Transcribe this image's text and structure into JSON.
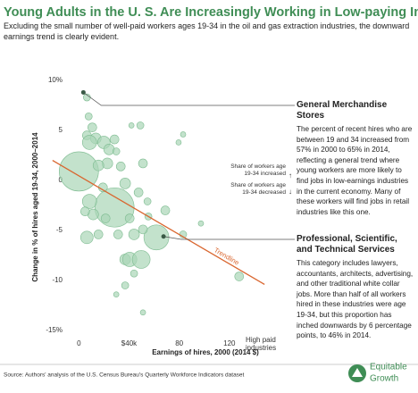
{
  "chart_data": {
    "type": "scatter",
    "title": "Young Adults in the U. S. Are Increasingly Working in Low-paying Industries",
    "subtitle": "Excluding the small number of well-paid workers ages 19-34 in the oil and gas extraction industries, the downward earnings trend is clearly evident.",
    "x_label": "Earnings of hires, 2000 (2014 $)",
    "y_label": "Change in % of hires aged 19-34, 2000–2014",
    "xlim": [
      -23,
      155
    ],
    "ylim": [
      -16,
      10.5
    ],
    "xticks": [
      0,
      {
        "value": 40,
        "label": "$40k"
      },
      80,
      120,
      {
        "value": 145,
        "label": "High paid industries"
      }
    ],
    "yticks": [
      {
        "value": 10,
        "label": "10%"
      },
      5,
      0,
      -5,
      -10,
      {
        "value": -15,
        "label": "-15%"
      }
    ],
    "series": [
      {
        "color": "#a9d6b6",
        "x": [
          6.4,
          7.8,
          6.4,
          10.7,
          13.5,
          8.5,
          0,
          19.9,
          24.1,
          28.4,
          22.7,
          29.8,
          41.9,
          49.0,
          51.1,
          47.6,
          28.4,
          8.5,
          11.4,
          6.4,
          15.6,
          5.0,
          19.2,
          36.9,
          31.3,
          44.0,
          36.9,
          40.5,
          49.7,
          61.8,
          51.1,
          54.7,
          68.9,
          79.5,
          83.1,
          97.3,
          127.8,
          36.9,
          29.8,
          51.1,
          44.0,
          83.1,
          55.4,
          21.3,
          40.5,
          15.6,
          33.4
        ],
        "values": [
          8.3,
          6.4,
          4.5,
          5.3,
          4.2,
          3.8,
          0.9,
          3.8,
          3.1,
          4.1,
          1.7,
          2.9,
          5.5,
          5.5,
          1.7,
          -1.2,
          -2.7,
          -2.1,
          -3.4,
          -5.7,
          -5.4,
          -3.1,
          -0.7,
          -0.3,
          -5.4,
          -5.4,
          -7.9,
          -7.9,
          -7.9,
          -5.7,
          -4.9,
          -2.1,
          -3.0,
          3.8,
          -5.4,
          -4.3,
          -9.6,
          -10.5,
          -11.4,
          -13.2,
          -9.3,
          4.6,
          -3.6,
          -3.8,
          -3.8,
          1.5,
          1.4
        ],
        "sizes": [
          4,
          4,
          5,
          5,
          6,
          8,
          22,
          7,
          6,
          5,
          6,
          4,
          3,
          4,
          5,
          5,
          22,
          8,
          6,
          7,
          5,
          5,
          5,
          6,
          5,
          6,
          6,
          8,
          10,
          14,
          5,
          4,
          5,
          3,
          4,
          3,
          5,
          4,
          3,
          3,
          4,
          3,
          4,
          5,
          5,
          6,
          5
        ]
      }
    ],
    "trendline": {
      "label": "Trendline",
      "color": "#d9662f",
      "x": [
        -21,
        148
      ],
      "y": [
        2.0,
        -10.4
      ]
    },
    "legend": {
      "increased": "Share of workers age 19-34 increased",
      "decreased": "Share of workers age 19-34 decreased"
    },
    "annotations": [
      {
        "title": "General Merchandise Stores",
        "x": 3.6,
        "y": 8.8,
        "text": "The percent of recent hires who are between 19 and 34 increased from 57% in 2000 to 65% in 2014, reflecting a general trend where young workers are more likely to find jobs in low-earnings industries in the current economy. Many of these workers will find jobs in retail industries like this one."
      },
      {
        "title": "Professional, Scientific, and Technical Services",
        "x": 67.5,
        "y": -5.6,
        "text": "This category includes lawyers, accountants, architects, advertising, and other traditional white collar jobs. More than half of all  workers hired in these industries were age 19-34, but this proportion has inched downwards by 6 percentage points, to 46% in 2014."
      }
    ],
    "source": "Source: Authors' analysis of the U.S. Census Bureau's Quarterly Workforce Indicators dataset",
    "logo": [
      "Equitable",
      "Growth"
    ]
  }
}
